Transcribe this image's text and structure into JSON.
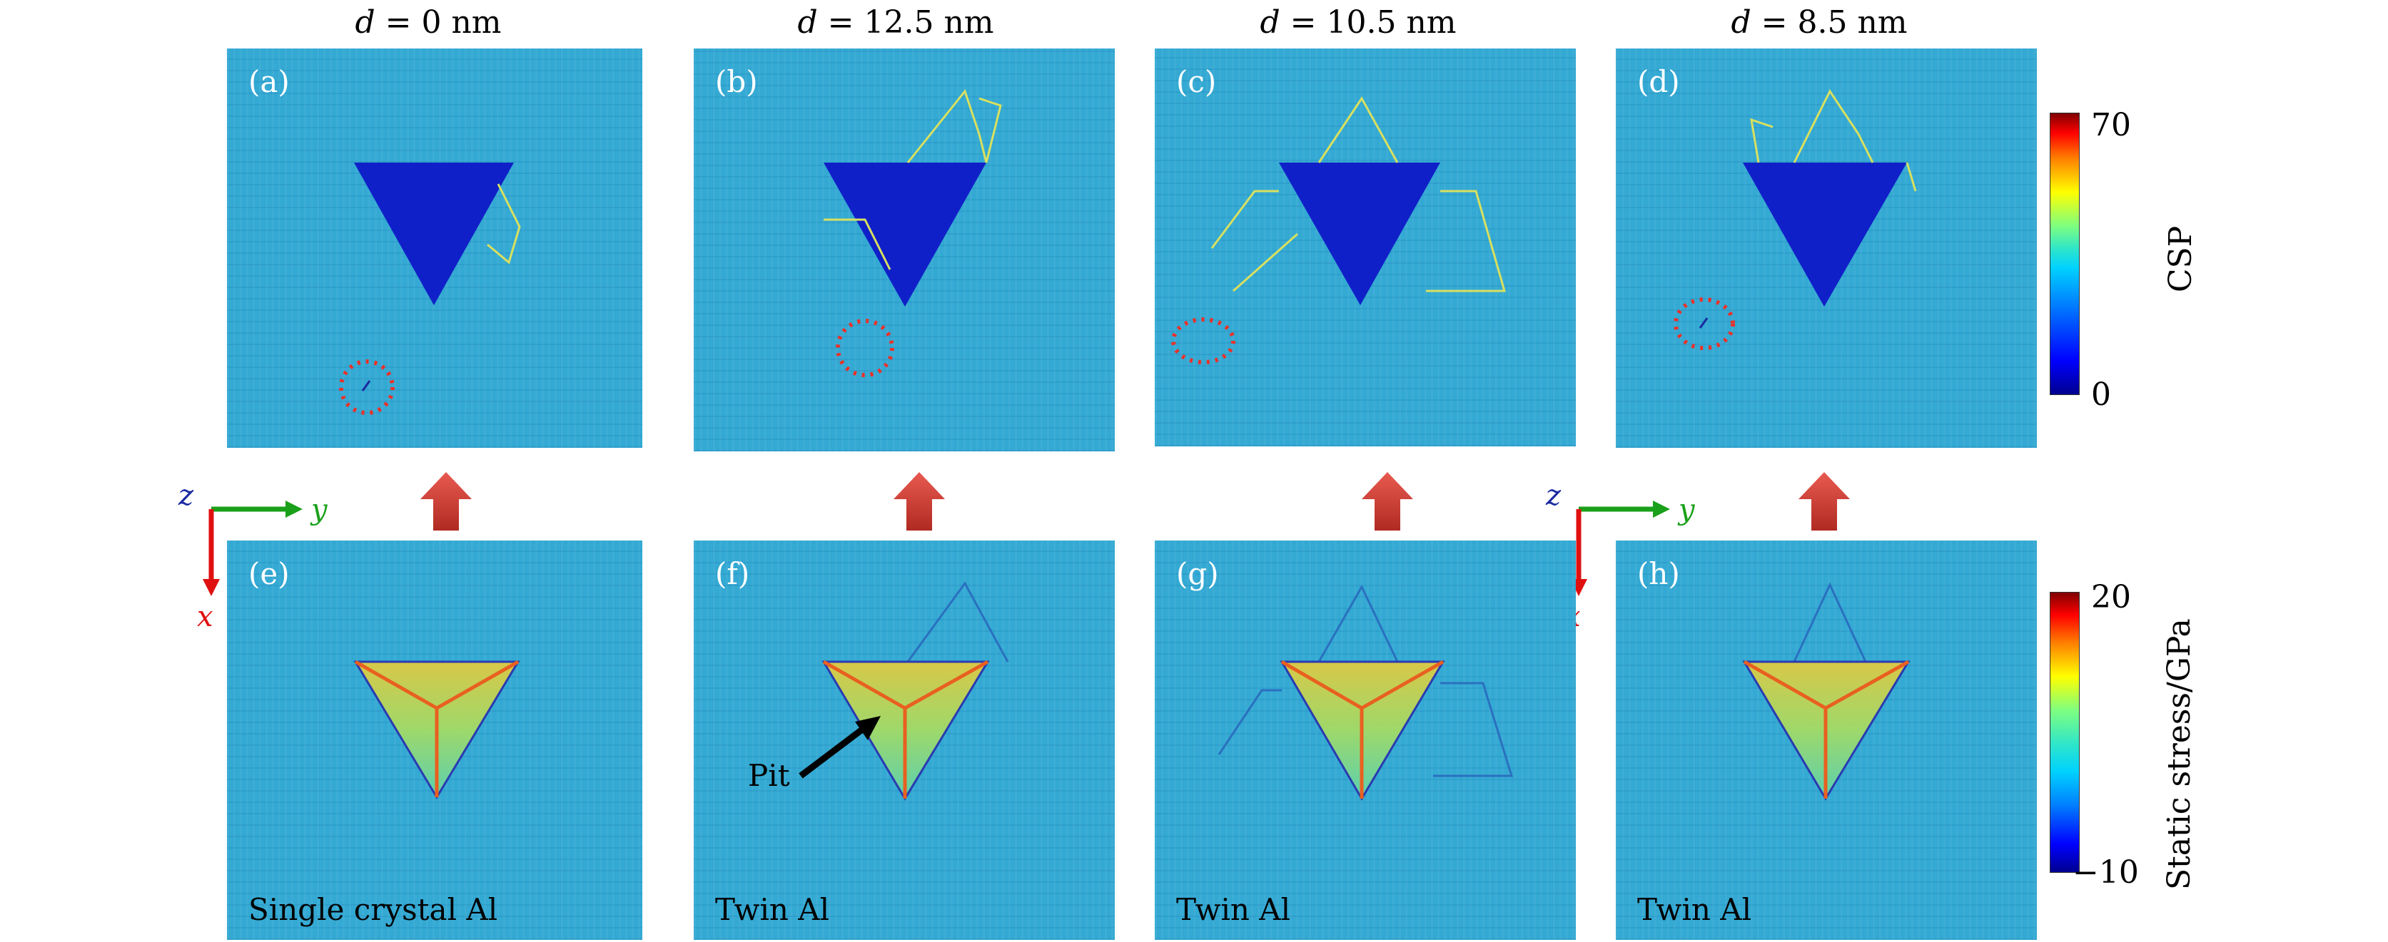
{
  "columns": [
    {
      "var": "d",
      "value": " = 0 nm"
    },
    {
      "var": "d",
      "value": " = 12.5 nm"
    },
    {
      "var": "d",
      "value": " = 10.5 nm"
    },
    {
      "var": "d",
      "value": " = 8.5 nm"
    }
  ],
  "top_panels": [
    {
      "label": "(a)"
    },
    {
      "label": "(b)"
    },
    {
      "label": "(c)"
    },
    {
      "label": "(d)"
    }
  ],
  "bottom_panels": [
    {
      "label": "(e)",
      "caption": "Single crystal Al"
    },
    {
      "label": "(f)",
      "caption": "Twin Al"
    },
    {
      "label": "(g)",
      "caption": "Twin Al"
    },
    {
      "label": "(h)",
      "caption": "Twin Al"
    }
  ],
  "annotation": {
    "pit": "Pit"
  },
  "axes": {
    "z": "z",
    "y": "y",
    "x": "x"
  },
  "colorbars": {
    "csp": {
      "label": "CSP",
      "max": "70",
      "min": "0"
    },
    "stress": {
      "label": "Static stress/GPa",
      "max": "20",
      "min": "−10"
    }
  },
  "colors": {
    "background_blue": "#33a9d3",
    "indent_blue": "#1020c8",
    "defect_circle_red": "#e8322a",
    "arrow_red": "#d8403a",
    "axis_y_green": "#1aa01a",
    "axis_x_red": "#e01010",
    "axis_z_blue": "#1a2aa0"
  },
  "icons": [
    "up-arrow-icon",
    "axis-triad-icon",
    "dotted-circle-icon",
    "pointer-arrow-icon"
  ]
}
